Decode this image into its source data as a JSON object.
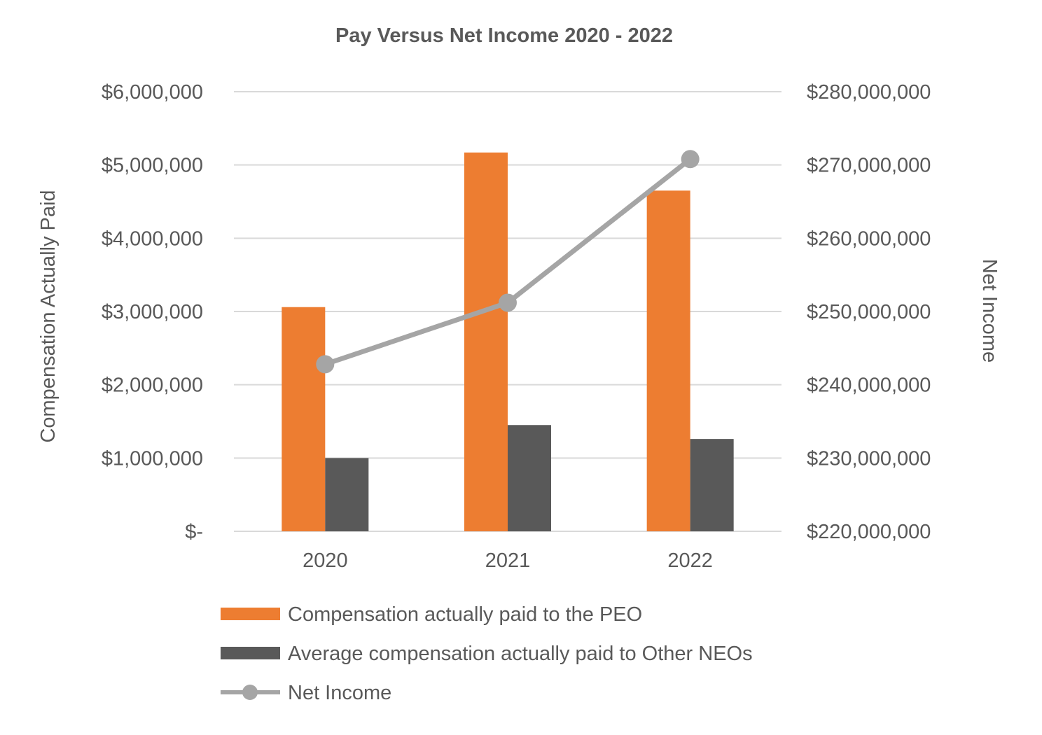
{
  "chart_data": {
    "type": "bar",
    "title": "Pay Versus Net Income 2020 - 2022",
    "categories": [
      "2020",
      "2021",
      "2022"
    ],
    "series": [
      {
        "name": "Compensation actually paid to the PEO",
        "type": "bar",
        "axis": "left",
        "color": "#ED7D31",
        "values": [
          3060000,
          5170000,
          4650000
        ]
      },
      {
        "name": "Average compensation actually paid to Other NEOs",
        "type": "bar",
        "axis": "left",
        "color": "#595959",
        "values": [
          1000000,
          1450000,
          1260000
        ]
      },
      {
        "name": "Net Income",
        "type": "line",
        "axis": "right",
        "color": "#A5A5A5",
        "values": [
          242800000,
          251200000,
          270800000
        ]
      }
    ],
    "ylabel": "Compensation Actually Paid",
    "ylabel_right": "Net Income",
    "ylim": [
      0,
      6000000
    ],
    "ylim_right": [
      220000000,
      280000000
    ],
    "yticks": [
      "$-",
      "$1,000,000",
      "$2,000,000",
      "$3,000,000",
      "$4,000,000",
      "$5,000,000",
      "$6,000,000"
    ],
    "yticks_right": [
      "$220,000,000",
      "$230,000,000",
      "$240,000,000",
      "$250,000,000",
      "$260,000,000",
      "$270,000,000",
      "$280,000,000"
    ],
    "grid": true,
    "legend_position": "bottom"
  }
}
